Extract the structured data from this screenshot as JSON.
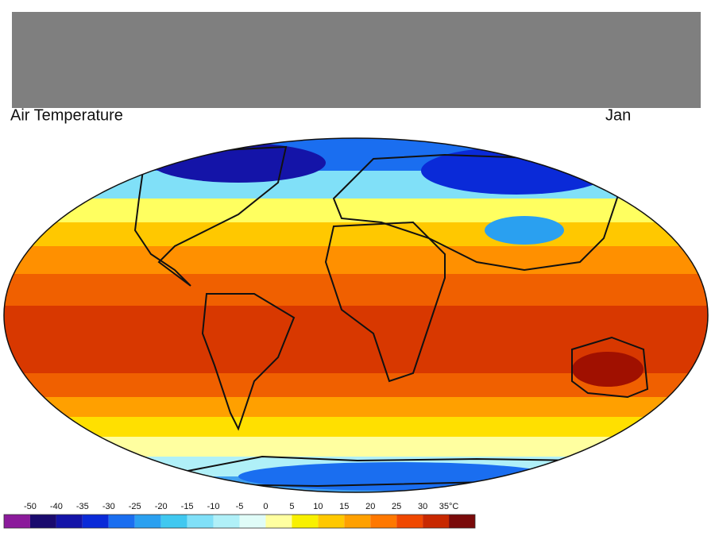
{
  "header": {
    "title": "Air Temperature",
    "month": "Jan"
  },
  "legend": {
    "ticks": [
      -50,
      -40,
      -35,
      -30,
      -25,
      -20,
      -15,
      -10,
      -5,
      0,
      5,
      10,
      15,
      20,
      25,
      30,
      {
        "value": 35,
        "label": "35°C"
      }
    ],
    "colors": [
      "#8b1a9b",
      "#1a0a6e",
      "#1414a8",
      "#0a2ad8",
      "#1a6ef0",
      "#2aa0f0",
      "#40c8f0",
      "#80e0f8",
      "#b0f0f8",
      "#e0fcf8",
      "#ffffa0",
      "#f8f000",
      "#ffc800",
      "#ffa000",
      "#ff7800",
      "#f04800",
      "#c82800",
      "#7a0a0a"
    ]
  }
}
